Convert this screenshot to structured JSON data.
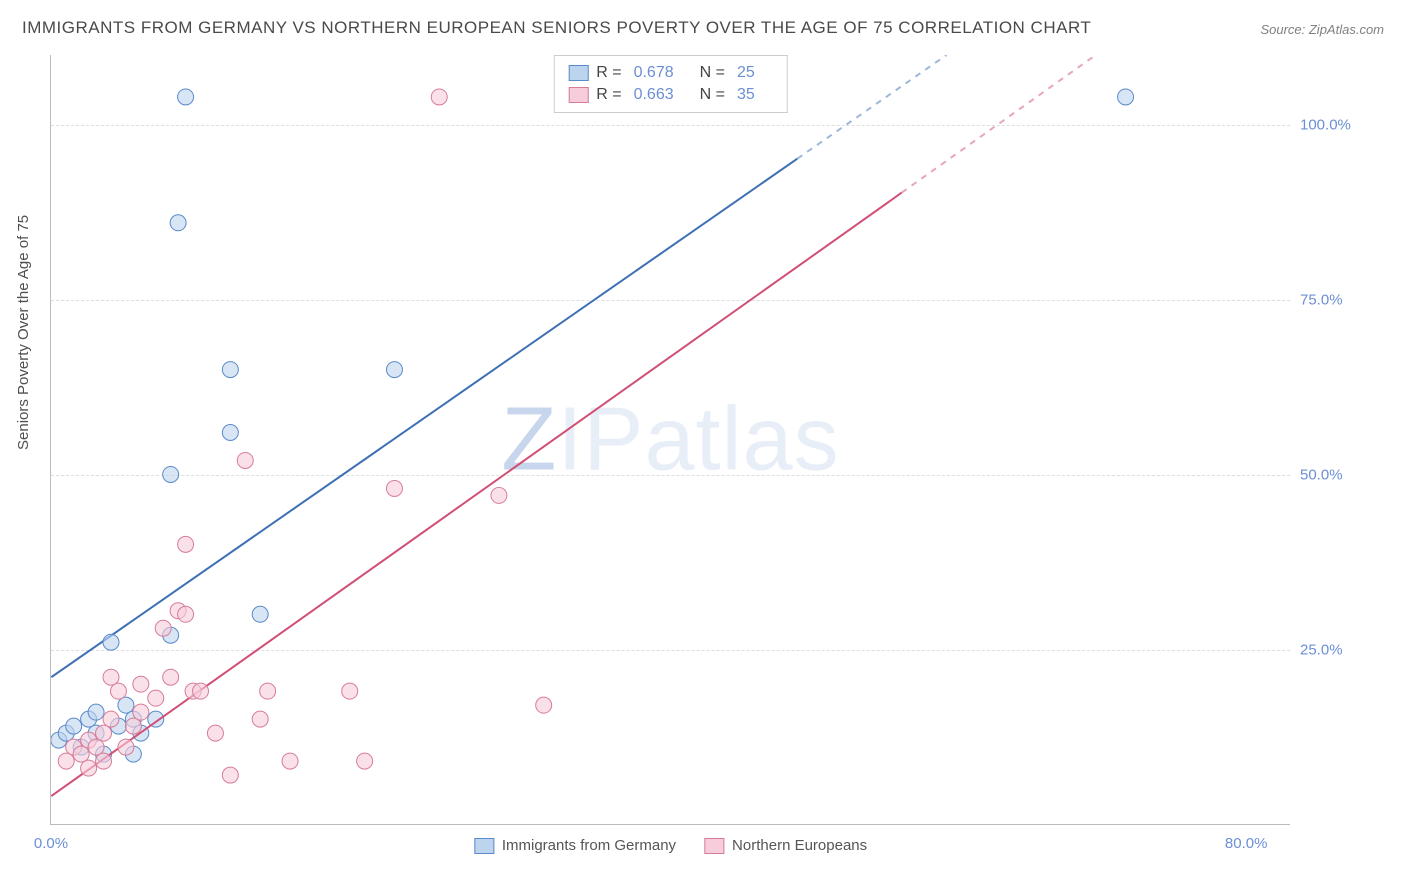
{
  "title": "IMMIGRANTS FROM GERMANY VS NORTHERN EUROPEAN SENIORS POVERTY OVER THE AGE OF 75 CORRELATION CHART",
  "source": "Source: ZipAtlas.com",
  "watermark": {
    "z": "Z",
    "ip": "IP",
    "atlas": "atlas"
  },
  "ylabel": "Seniors Poverty Over the Age of 75",
  "chart": {
    "type": "scatter",
    "xlim": [
      0,
      83
    ],
    "ylim": [
      0,
      110
    ],
    "background_color": "#ffffff",
    "grid_color": "#dcdee0",
    "axis_color": "#bbbbbb",
    "tick_color": "#6b8fd4",
    "yticks": [
      25,
      50,
      75,
      100
    ],
    "ytick_labels": [
      "25.0%",
      "50.0%",
      "75.0%",
      "100.0%"
    ],
    "xticks": [
      0,
      80
    ],
    "xtick_labels": [
      "0.0%",
      "80.0%"
    ],
    "marker_radius": 8,
    "marker_opacity": 0.6,
    "line_width": 2,
    "series": [
      {
        "name": "Immigrants from Germany",
        "color_fill": "#bcd4ee",
        "color_stroke": "#5a8acb",
        "line_color": "#3d6fb5",
        "R": "0.678",
        "N": "25",
        "regression": {
          "x1": 0,
          "y1": 21,
          "x2": 60,
          "y2": 110,
          "dash_from_x": 50
        },
        "points": [
          [
            0.5,
            12
          ],
          [
            1,
            13
          ],
          [
            1.5,
            14
          ],
          [
            2,
            11
          ],
          [
            2.5,
            15
          ],
          [
            3,
            16
          ],
          [
            3,
            13
          ],
          [
            3.5,
            10
          ],
          [
            4,
            26
          ],
          [
            4.5,
            14
          ],
          [
            5,
            17
          ],
          [
            5.5,
            15
          ],
          [
            5.5,
            10
          ],
          [
            6,
            13
          ],
          [
            7,
            15
          ],
          [
            8,
            27
          ],
          [
            8,
            50
          ],
          [
            8.5,
            86
          ],
          [
            9,
            104
          ],
          [
            12,
            56
          ],
          [
            12,
            65
          ],
          [
            14,
            30
          ],
          [
            23,
            65
          ],
          [
            39,
            104
          ],
          [
            72,
            104
          ]
        ]
      },
      {
        "name": "Northern Europeans",
        "color_fill": "#f7cddb",
        "color_stroke": "#d77c98",
        "line_color": "#d14f74",
        "R": "0.663",
        "N": "35",
        "regression": {
          "x1": 0,
          "y1": 4,
          "x2": 70,
          "y2": 110,
          "dash_from_x": 57
        },
        "points": [
          [
            1,
            9
          ],
          [
            1.5,
            11
          ],
          [
            2,
            10
          ],
          [
            2.5,
            12
          ],
          [
            2.5,
            8
          ],
          [
            3,
            11
          ],
          [
            3.5,
            13
          ],
          [
            3.5,
            9
          ],
          [
            4,
            15
          ],
          [
            4.5,
            19
          ],
          [
            4,
            21
          ],
          [
            5,
            11
          ],
          [
            5.5,
            14
          ],
          [
            6,
            20
          ],
          [
            6,
            16
          ],
          [
            7,
            18
          ],
          [
            7.5,
            28
          ],
          [
            8,
            21
          ],
          [
            8.5,
            30.5
          ],
          [
            9,
            40
          ],
          [
            9,
            30
          ],
          [
            9.5,
            19
          ],
          [
            10,
            19
          ],
          [
            11,
            13
          ],
          [
            12,
            7
          ],
          [
            13,
            52
          ],
          [
            14,
            15
          ],
          [
            14.5,
            19
          ],
          [
            16,
            9
          ],
          [
            20,
            19
          ],
          [
            21,
            9
          ],
          [
            23,
            48
          ],
          [
            26,
            104
          ],
          [
            30,
            47
          ],
          [
            33,
            17
          ]
        ]
      }
    ]
  },
  "legend_top_labels": {
    "R": "R =",
    "N": "N ="
  },
  "legend_bottom_labels": [
    "Immigrants from Germany",
    "Northern Europeans"
  ]
}
